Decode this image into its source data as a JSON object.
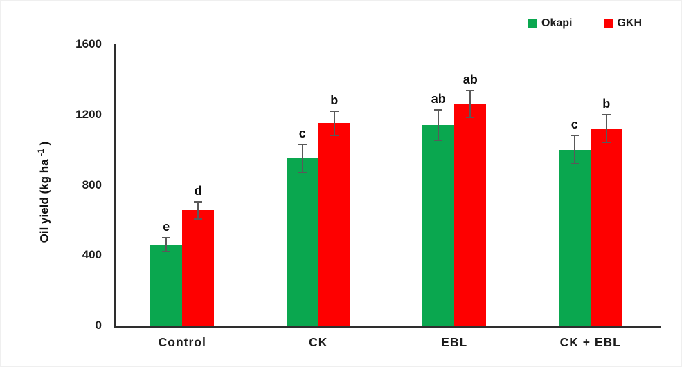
{
  "chart_data": {
    "type": "bar",
    "title": "",
    "xlabel": "",
    "ylabel": "Oil yield (kg ha⁻¹ )",
    "ylabel_parts": {
      "main": "Oil yield (kg ha ",
      "sup": "-1",
      "close": " )"
    },
    "categories": [
      "Control",
      "CK",
      "EBL",
      "CK + EBL"
    ],
    "series": [
      {
        "name": "Okapi",
        "color": "#0AA74F",
        "values": [
          460,
          950,
          1140,
          1000
        ],
        "errors": [
          40,
          80,
          85,
          80
        ],
        "sig_letters": [
          "e",
          "c",
          "ab",
          "c"
        ]
      },
      {
        "name": "GKH",
        "color": "#FE0000",
        "values": [
          655,
          1150,
          1260,
          1120
        ],
        "errors": [
          50,
          70,
          75,
          80
        ],
        "sig_letters": [
          "d",
          "b",
          "ab",
          "b"
        ]
      }
    ],
    "ylim": [
      0,
      1600
    ],
    "yticks": [
      0,
      400,
      800,
      1200,
      1600
    ],
    "grid": false,
    "legend_position": "top-right",
    "error_bar_color": "#595959",
    "axis_color": "#2e2e2e"
  }
}
